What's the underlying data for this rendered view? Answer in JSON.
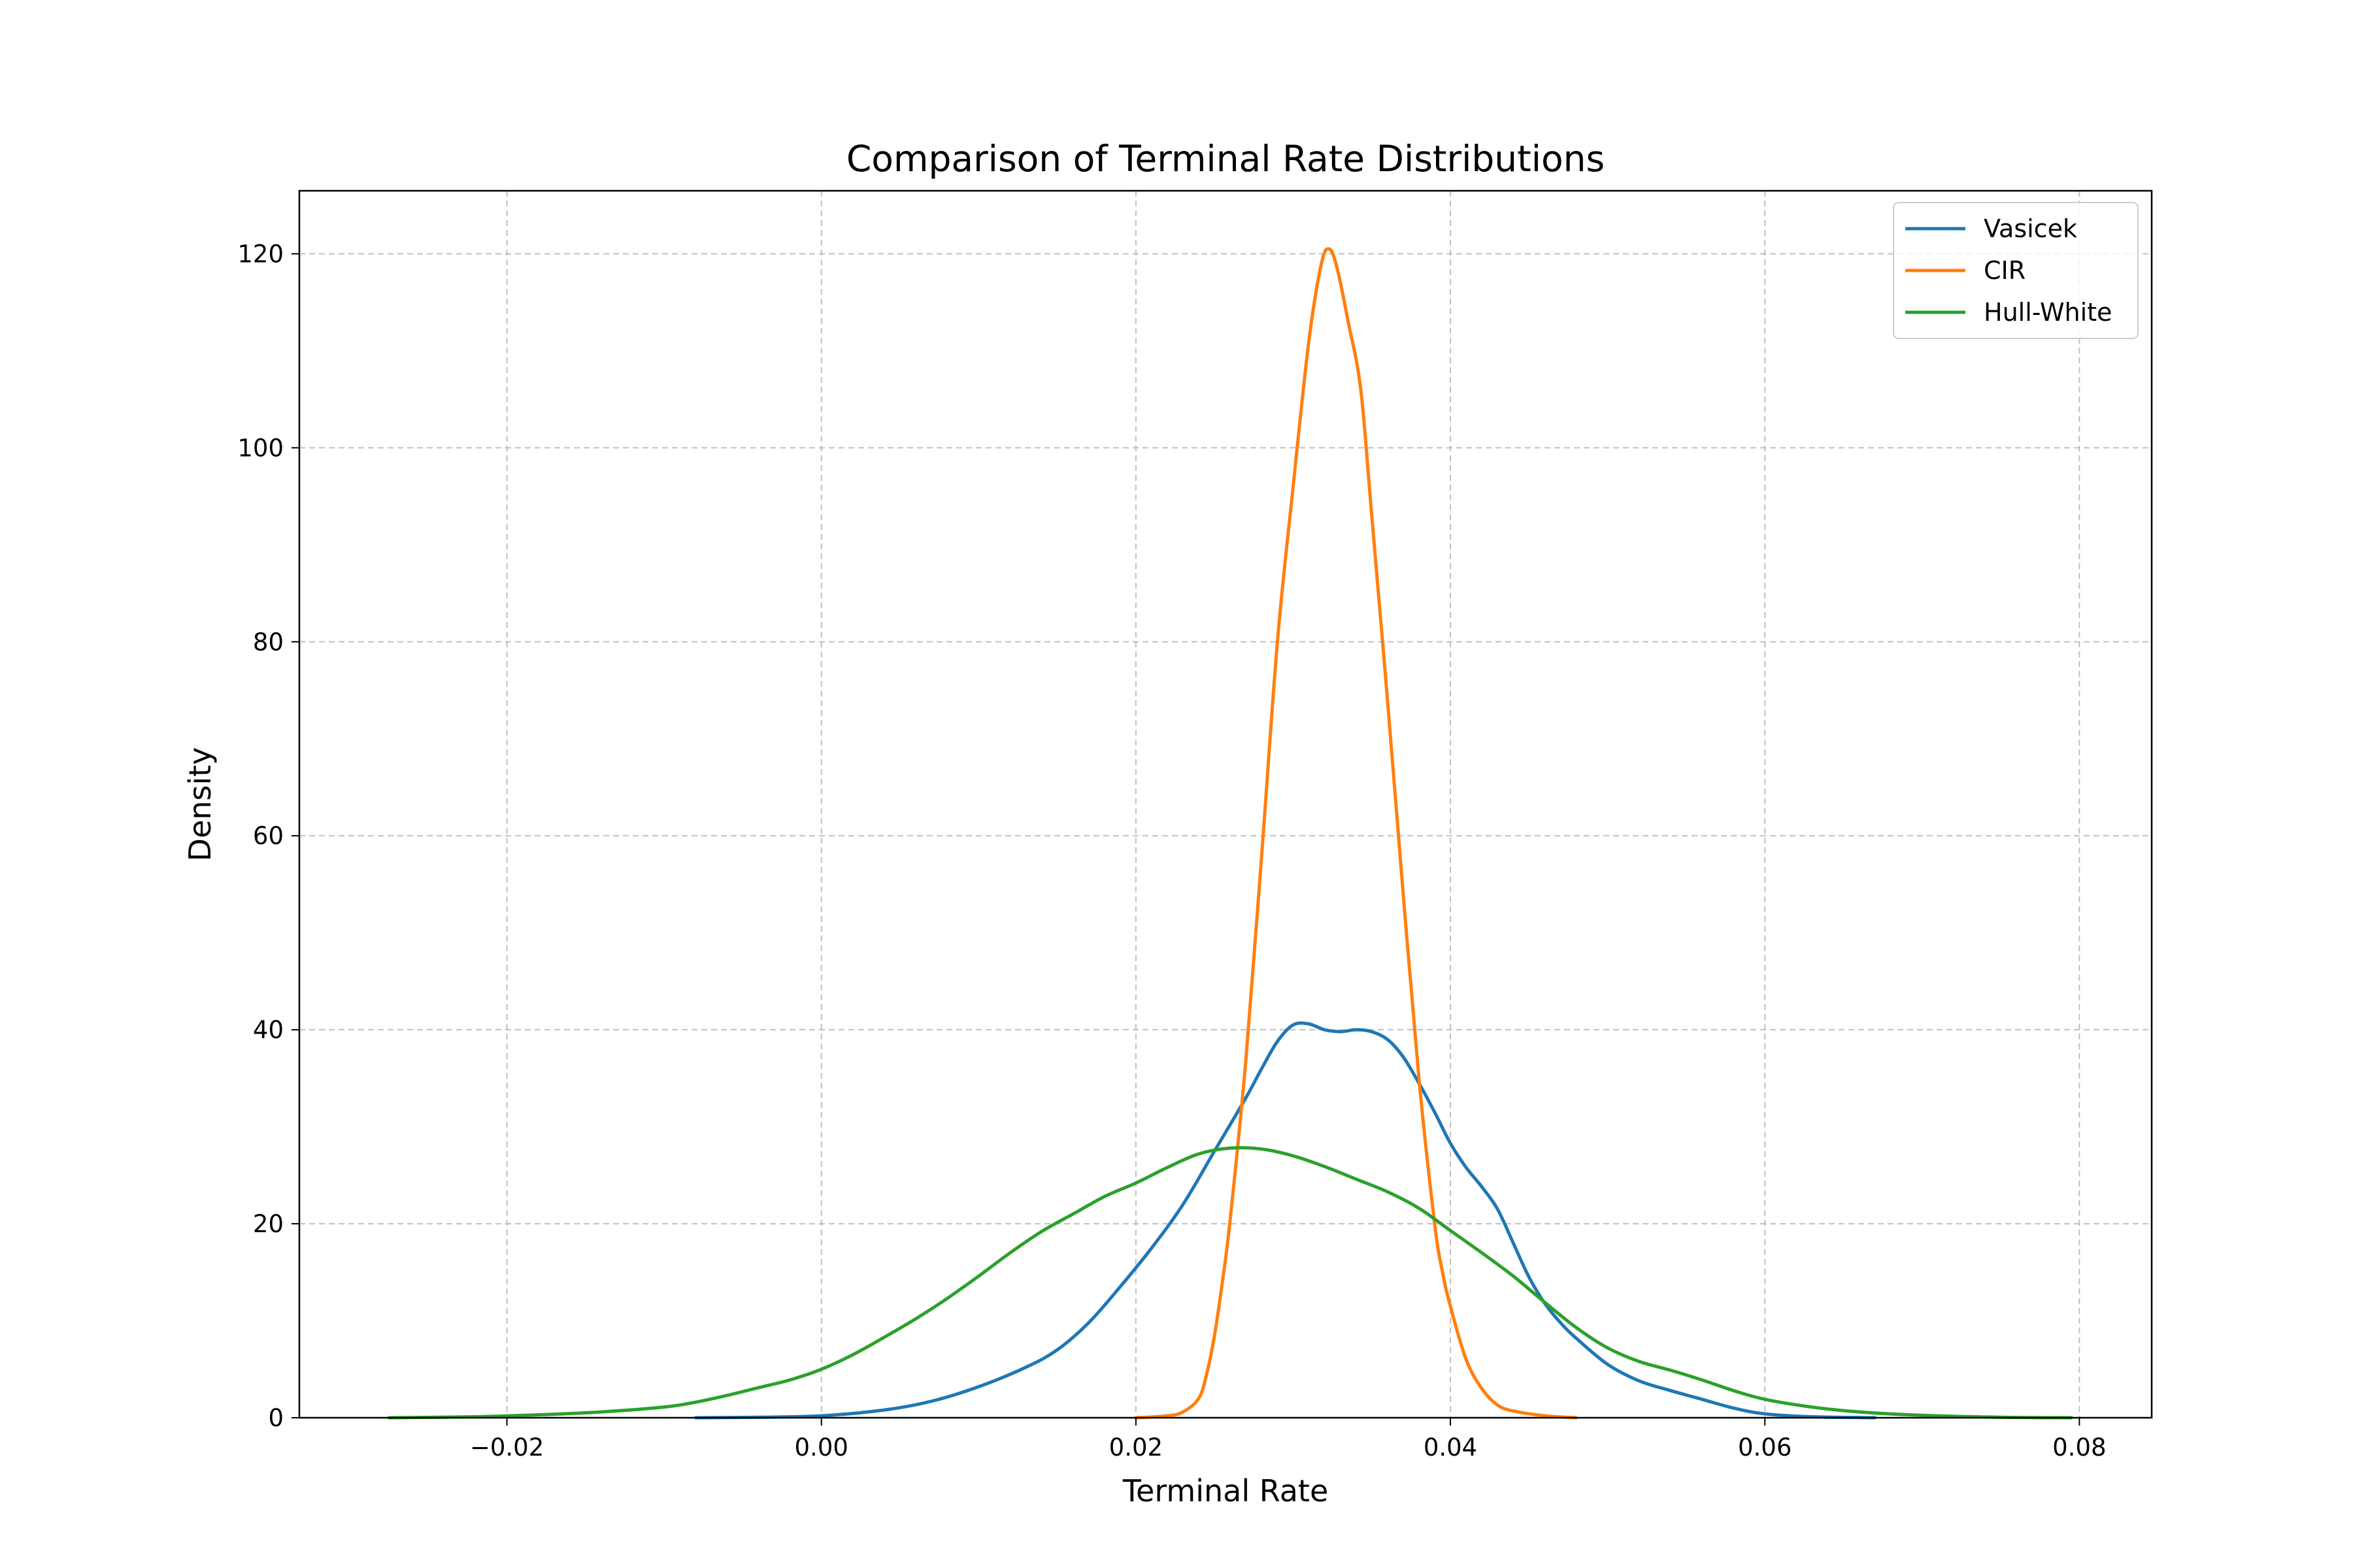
{
  "chart_data": {
    "type": "line",
    "title": "Comparison of Terminal Rate Distributions",
    "xlabel": "Terminal Rate",
    "ylabel": "Density",
    "xlim": [
      -0.0332,
      0.0846
    ],
    "ylim": [
      0,
      126.5
    ],
    "xticks": [
      -0.02,
      0.0,
      0.02,
      0.04,
      0.06,
      0.08
    ],
    "xtick_labels": [
      "−0.02",
      "0.00",
      "0.02",
      "0.04",
      "0.06",
      "0.08"
    ],
    "yticks": [
      0,
      20,
      40,
      60,
      80,
      100,
      120
    ],
    "ytick_labels": [
      "0",
      "20",
      "40",
      "60",
      "80",
      "100",
      "120"
    ],
    "grid": true,
    "legend_position": "top-right",
    "series": [
      {
        "name": "Vasicek",
        "color": "#1f77b4",
        "points": [
          [
            -0.008,
            0
          ],
          [
            -0.004,
            0.05
          ],
          [
            0.0,
            0.2
          ],
          [
            0.004,
            0.8
          ],
          [
            0.007,
            1.7
          ],
          [
            0.01,
            3.2
          ],
          [
            0.013,
            5.2
          ],
          [
            0.015,
            7.0
          ],
          [
            0.017,
            9.8
          ],
          [
            0.019,
            13.5
          ],
          [
            0.021,
            17.5
          ],
          [
            0.023,
            22.0
          ],
          [
            0.025,
            27.5
          ],
          [
            0.027,
            33.0
          ],
          [
            0.028,
            36.0
          ],
          [
            0.029,
            38.8
          ],
          [
            0.03,
            40.5
          ],
          [
            0.031,
            40.6
          ],
          [
            0.032,
            40.0
          ],
          [
            0.033,
            39.8
          ],
          [
            0.034,
            40.0
          ],
          [
            0.035,
            39.8
          ],
          [
            0.036,
            39.0
          ],
          [
            0.037,
            37.2
          ],
          [
            0.038,
            34.5
          ],
          [
            0.039,
            31.5
          ],
          [
            0.04,
            28.3
          ],
          [
            0.041,
            25.8
          ],
          [
            0.042,
            23.8
          ],
          [
            0.043,
            21.5
          ],
          [
            0.044,
            18.0
          ],
          [
            0.045,
            14.5
          ],
          [
            0.046,
            11.8
          ],
          [
            0.047,
            9.8
          ],
          [
            0.048,
            8.2
          ],
          [
            0.05,
            5.5
          ],
          [
            0.052,
            3.8
          ],
          [
            0.054,
            2.8
          ],
          [
            0.056,
            1.9
          ],
          [
            0.058,
            1.0
          ],
          [
            0.06,
            0.4
          ],
          [
            0.063,
            0.1
          ],
          [
            0.067,
            0
          ]
        ]
      },
      {
        "name": "CIR",
        "color": "#ff7f0e",
        "points": [
          [
            0.02,
            0
          ],
          [
            0.022,
            0.2
          ],
          [
            0.023,
            0.6
          ],
          [
            0.024,
            2.0
          ],
          [
            0.0245,
            4.5
          ],
          [
            0.025,
            8.5
          ],
          [
            0.0255,
            14.0
          ],
          [
            0.026,
            20.5
          ],
          [
            0.027,
            37.0
          ],
          [
            0.028,
            58.0
          ],
          [
            0.029,
            80.0
          ],
          [
            0.03,
            96.0
          ],
          [
            0.031,
            111.0
          ],
          [
            0.0318,
            119.0
          ],
          [
            0.0323,
            120.5
          ],
          [
            0.0328,
            118.5
          ],
          [
            0.0335,
            113.0
          ],
          [
            0.0343,
            106.0
          ],
          [
            0.035,
            93.0
          ],
          [
            0.036,
            74.0
          ],
          [
            0.037,
            54.0
          ],
          [
            0.038,
            35.0
          ],
          [
            0.039,
            20.0
          ],
          [
            0.0395,
            15.0
          ],
          [
            0.04,
            11.5
          ],
          [
            0.041,
            6.0
          ],
          [
            0.042,
            3.0
          ],
          [
            0.043,
            1.3
          ],
          [
            0.044,
            0.7
          ],
          [
            0.046,
            0.2
          ],
          [
            0.048,
            0
          ]
        ]
      },
      {
        "name": "Hull-White",
        "color": "#2ca02c",
        "points": [
          [
            -0.0275,
            0
          ],
          [
            -0.022,
            0.1
          ],
          [
            -0.018,
            0.3
          ],
          [
            -0.014,
            0.6
          ],
          [
            -0.01,
            1.1
          ],
          [
            -0.008,
            1.6
          ],
          [
            -0.006,
            2.3
          ],
          [
            -0.004,
            3.1
          ],
          [
            -0.002,
            3.9
          ],
          [
            0.0,
            5.0
          ],
          [
            0.002,
            6.5
          ],
          [
            0.004,
            8.3
          ],
          [
            0.006,
            10.2
          ],
          [
            0.008,
            12.3
          ],
          [
            0.01,
            14.6
          ],
          [
            0.012,
            17.0
          ],
          [
            0.014,
            19.2
          ],
          [
            0.016,
            21.0
          ],
          [
            0.018,
            22.8
          ],
          [
            0.02,
            24.2
          ],
          [
            0.022,
            25.8
          ],
          [
            0.024,
            27.2
          ],
          [
            0.026,
            27.8
          ],
          [
            0.028,
            27.7
          ],
          [
            0.03,
            27.0
          ],
          [
            0.032,
            25.9
          ],
          [
            0.034,
            24.6
          ],
          [
            0.036,
            23.3
          ],
          [
            0.038,
            21.6
          ],
          [
            0.04,
            19.3
          ],
          [
            0.042,
            17.0
          ],
          [
            0.044,
            14.6
          ],
          [
            0.046,
            11.9
          ],
          [
            0.048,
            9.3
          ],
          [
            0.05,
            7.2
          ],
          [
            0.052,
            5.8
          ],
          [
            0.054,
            4.9
          ],
          [
            0.056,
            3.9
          ],
          [
            0.058,
            2.8
          ],
          [
            0.06,
            1.9
          ],
          [
            0.063,
            1.1
          ],
          [
            0.066,
            0.6
          ],
          [
            0.07,
            0.25
          ],
          [
            0.075,
            0.05
          ],
          [
            0.0795,
            0
          ]
        ]
      }
    ]
  }
}
